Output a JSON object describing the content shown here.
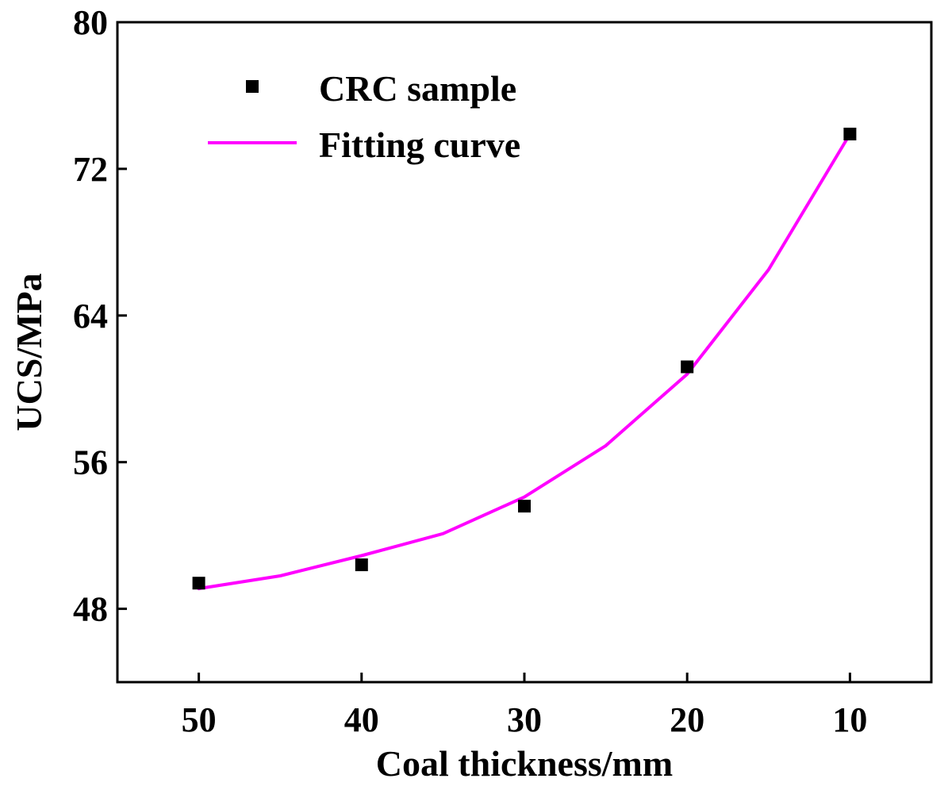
{
  "chart_data": {
    "type": "scatter",
    "title": "",
    "xlabel": "Coal thickness/mm",
    "ylabel": "UCS/MPa",
    "x_reversed": true,
    "xlim": [
      55,
      5
    ],
    "ylim": [
      44,
      80
    ],
    "x_ticks": [
      50,
      40,
      30,
      20,
      10
    ],
    "x_tick_labels": [
      "50",
      "40",
      "30",
      "20",
      "10"
    ],
    "y_ticks": [
      48,
      56,
      64,
      72,
      80
    ],
    "y_tick_labels": [
      "48",
      "56",
      "64",
      "72",
      "80"
    ],
    "grid": false,
    "legend_position": "top-left",
    "series": [
      {
        "name": "CRC sample",
        "kind": "scatter",
        "marker": "square",
        "color": "#000000",
        "x": [
          50,
          40,
          30,
          20,
          10
        ],
        "y": [
          49.4,
          50.4,
          53.6,
          61.2,
          73.9
        ]
      },
      {
        "name": "Fitting curve",
        "kind": "line",
        "color": "#ff00ff",
        "x": [
          50,
          45,
          40,
          35,
          30,
          25,
          20,
          15,
          10
        ],
        "y": [
          49.1,
          49.8,
          50.9,
          52.1,
          54.1,
          56.9,
          60.8,
          66.5,
          73.9
        ]
      }
    ]
  }
}
